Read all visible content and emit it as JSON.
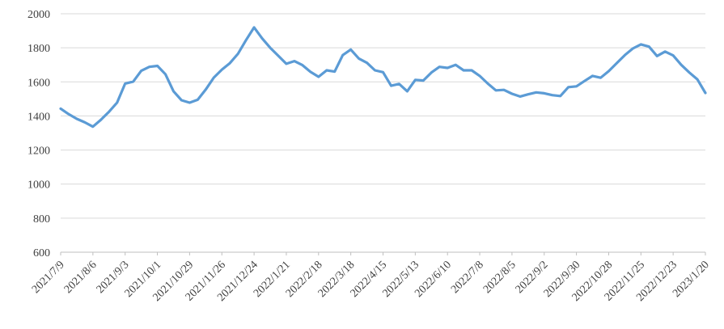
{
  "chart_data": {
    "type": "line",
    "title": "",
    "legend": "none",
    "grid": "horizontal",
    "ylim": [
      600,
      2000
    ],
    "y_ticks": [
      600,
      800,
      1000,
      1200,
      1400,
      1600,
      1800,
      2000
    ],
    "x_tick_every": 4,
    "x_tick_labels": [
      "2021/7/9",
      "2021/8/6",
      "2021/9/3",
      "2021/10/1",
      "2021/10/29",
      "2021/11/26",
      "2021/12/24",
      "2022/1/21",
      "2022/2/18",
      "2022/3/18",
      "2022/4/15",
      "2022/5/13",
      "2022/6/10",
      "2022/7/8",
      "2022/8/5",
      "2022/9/2",
      "2022/9/30",
      "2022/10/28",
      "2022/11/25",
      "2022/12/23",
      "2023/1/20"
    ],
    "categories": [
      "2021/7/9",
      "2021/7/16",
      "2021/7/23",
      "2021/7/30",
      "2021/8/6",
      "2021/8/13",
      "2021/8/20",
      "2021/8/27",
      "2021/9/3",
      "2021/9/10",
      "2021/9/17",
      "2021/9/24",
      "2021/10/1",
      "2021/10/8",
      "2021/10/15",
      "2021/10/22",
      "2021/10/29",
      "2021/11/5",
      "2021/11/12",
      "2021/11/19",
      "2021/11/26",
      "2021/12/3",
      "2021/12/10",
      "2021/12/17",
      "2021/12/24",
      "2021/12/31",
      "2022/1/7",
      "2022/1/14",
      "2022/1/21",
      "2022/1/28",
      "2022/2/4",
      "2022/2/11",
      "2022/2/18",
      "2022/2/25",
      "2022/3/4",
      "2022/3/11",
      "2022/3/18",
      "2022/3/25",
      "2022/4/1",
      "2022/4/8",
      "2022/4/15",
      "2022/4/22",
      "2022/4/29",
      "2022/5/6",
      "2022/5/13",
      "2022/5/20",
      "2022/5/27",
      "2022/6/3",
      "2022/6/10",
      "2022/6/17",
      "2022/6/24",
      "2022/7/1",
      "2022/7/8",
      "2022/7/15",
      "2022/7/22",
      "2022/7/29",
      "2022/8/5",
      "2022/8/12",
      "2022/8/19",
      "2022/8/26",
      "2022/9/2",
      "2022/9/9",
      "2022/9/16",
      "2022/9/23",
      "2022/9/30",
      "2022/10/7",
      "2022/10/14",
      "2022/10/21",
      "2022/10/28",
      "2022/11/4",
      "2022/11/11",
      "2022/11/18",
      "2022/11/25",
      "2022/12/2",
      "2022/12/9",
      "2022/12/16",
      "2022/12/23",
      "2022/12/30",
      "2023/1/6",
      "2023/1/13",
      "2023/1/20"
    ],
    "values": [
      1443,
      1410,
      1383,
      1362,
      1337,
      1378,
      1425,
      1478,
      1590,
      1602,
      1665,
      1688,
      1694,
      1645,
      1545,
      1492,
      1478,
      1495,
      1555,
      1625,
      1672,
      1710,
      1765,
      1845,
      1920,
      1855,
      1800,
      1753,
      1706,
      1722,
      1698,
      1659,
      1630,
      1668,
      1660,
      1757,
      1790,
      1737,
      1712,
      1668,
      1657,
      1577,
      1588,
      1545,
      1612,
      1608,
      1655,
      1688,
      1682,
      1700,
      1668,
      1668,
      1635,
      1590,
      1550,
      1553,
      1530,
      1514,
      1527,
      1538,
      1533,
      1522,
      1517,
      1569,
      1574,
      1605,
      1635,
      1624,
      1663,
      1710,
      1757,
      1796,
      1820,
      1807,
      1752,
      1778,
      1755,
      1700,
      1655,
      1615,
      1535
    ],
    "line_color": "#5B9BD5",
    "gridline_color": "#D9D9D9",
    "axis_color": "#BFBFBF",
    "tick_color": "#BFBFBF",
    "label_color": "#404040"
  }
}
